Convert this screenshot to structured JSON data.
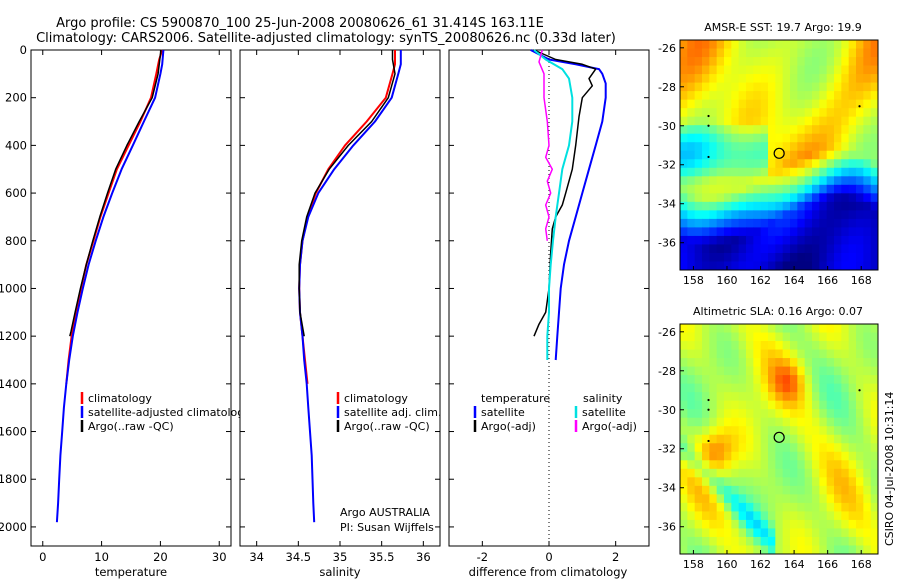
{
  "figure": {
    "title_line1": "Argo profile: CS 5900870_100 25-Jun-2008 20080626_61 31.414S 163.11E",
    "title_line2": "Climatology: CARS2006. Satellite-adjusted climatology: synTS_20080626.nc (0.33d later)",
    "credit": "CSIRO 04-Jul-2008 10:31:14"
  },
  "chart_data": [
    {
      "id": "temperature",
      "type": "line",
      "xlabel": "temperature",
      "xlim": [
        -2,
        32
      ],
      "xticks": [
        0,
        10,
        20,
        30
      ],
      "ylim": [
        0,
        2080
      ],
      "yticks": [
        0,
        200,
        400,
        600,
        800,
        1000,
        1200,
        1400,
        1600,
        1800,
        2000
      ],
      "y_reversed": true,
      "legend": [
        "climatology",
        "satellite-adjusted climatology",
        "Argo(..raw -QC)"
      ],
      "series": [
        {
          "name": "climatology",
          "color": "#ff0000",
          "width": 2,
          "points": [
            [
              20.3,
              0
            ],
            [
              19.8,
              40
            ],
            [
              19.3,
              100
            ],
            [
              18.4,
              200
            ],
            [
              16.6,
              300
            ],
            [
              14.6,
              400
            ],
            [
              12.6,
              500
            ],
            [
              11.2,
              600
            ],
            [
              9.8,
              700
            ],
            [
              8.6,
              800
            ],
            [
              7.4,
              900
            ],
            [
              6.5,
              1000
            ],
            [
              5.6,
              1100
            ],
            [
              4.9,
              1200
            ],
            [
              4.4,
              1300
            ],
            [
              4.0,
              1400
            ]
          ]
        },
        {
          "name": "satellite-adjusted climatology",
          "color": "#0000ff",
          "width": 2,
          "points": [
            [
              20.5,
              0
            ],
            [
              20.3,
              60
            ],
            [
              20.0,
              100
            ],
            [
              19.1,
              200
            ],
            [
              17.2,
              300
            ],
            [
              15.3,
              400
            ],
            [
              13.4,
              500
            ],
            [
              11.8,
              600
            ],
            [
              10.3,
              700
            ],
            [
              9.0,
              800
            ],
            [
              7.8,
              900
            ],
            [
              6.8,
              1000
            ],
            [
              5.9,
              1100
            ],
            [
              5.1,
              1200
            ],
            [
              4.5,
              1300
            ],
            [
              4.0,
              1400
            ],
            [
              3.6,
              1500
            ],
            [
              3.3,
              1600
            ],
            [
              3.0,
              1700
            ],
            [
              2.8,
              1800
            ],
            [
              2.6,
              1900
            ],
            [
              2.4,
              1980
            ]
          ]
        },
        {
          "name": "Argo(..raw -QC)",
          "color": "#000000",
          "width": 1.5,
          "points": [
            [
              20.1,
              0
            ],
            [
              19.9,
              40
            ],
            [
              19.6,
              100
            ],
            [
              18.6,
              200
            ],
            [
              16.4,
              300
            ],
            [
              14.3,
              400
            ],
            [
              12.4,
              500
            ],
            [
              11.0,
              600
            ],
            [
              9.7,
              700
            ],
            [
              8.5,
              800
            ],
            [
              7.4,
              900
            ],
            [
              6.4,
              1000
            ],
            [
              5.5,
              1100
            ],
            [
              4.8,
              1180
            ],
            [
              4.6,
              1200
            ]
          ]
        }
      ]
    },
    {
      "id": "salinity",
      "type": "line",
      "xlabel": "salinity",
      "xlim": [
        33.8,
        36.2
      ],
      "xticks": [
        34,
        34.5,
        35,
        35.5,
        36
      ],
      "ylim": [
        0,
        2080
      ],
      "yticks": [
        0,
        200,
        400,
        600,
        800,
        1000,
        1200,
        1400,
        1600,
        1800,
        2000
      ],
      "y_reversed": true,
      "legend": [
        "climatology",
        "satellite adj. clim.",
        "Argo(..raw -QC)"
      ],
      "annotation_line1": "Argo AUSTRALIA",
      "annotation_line2": "PI: Susan Wijffels",
      "series": [
        {
          "name": "climatology",
          "color": "#ff0000",
          "width": 2,
          "points": [
            [
              35.66,
              0
            ],
            [
              35.66,
              60
            ],
            [
              35.63,
              100
            ],
            [
              35.55,
              200
            ],
            [
              35.32,
              300
            ],
            [
              35.06,
              400
            ],
            [
              34.86,
              500
            ],
            [
              34.71,
              600
            ],
            [
              34.61,
              700
            ],
            [
              34.55,
              800
            ],
            [
              34.52,
              900
            ],
            [
              34.51,
              1000
            ],
            [
              34.52,
              1100
            ],
            [
              34.55,
              1200
            ],
            [
              34.58,
              1300
            ],
            [
              34.61,
              1400
            ]
          ]
        },
        {
          "name": "satellite adj. clim.",
          "color": "#0000ff",
          "width": 2,
          "points": [
            [
              35.73,
              0
            ],
            [
              35.73,
              60
            ],
            [
              35.7,
              100
            ],
            [
              35.62,
              200
            ],
            [
              35.42,
              300
            ],
            [
              35.16,
              400
            ],
            [
              34.93,
              500
            ],
            [
              34.74,
              600
            ],
            [
              34.62,
              700
            ],
            [
              34.55,
              800
            ],
            [
              34.52,
              900
            ],
            [
              34.51,
              1000
            ],
            [
              34.52,
              1100
            ],
            [
              34.55,
              1200
            ],
            [
              34.57,
              1300
            ],
            [
              34.6,
              1400
            ],
            [
              34.62,
              1500
            ],
            [
              34.64,
              1600
            ],
            [
              34.66,
              1700
            ],
            [
              34.67,
              1800
            ],
            [
              34.68,
              1900
            ],
            [
              34.69,
              1980
            ]
          ]
        },
        {
          "name": "Argo(..raw -QC)",
          "color": "#000000",
          "width": 1.5,
          "points": [
            [
              35.63,
              0
            ],
            [
              35.63,
              40
            ],
            [
              35.66,
              100
            ],
            [
              35.58,
              200
            ],
            [
              35.38,
              300
            ],
            [
              35.1,
              400
            ],
            [
              34.87,
              500
            ],
            [
              34.7,
              600
            ],
            [
              34.6,
              700
            ],
            [
              34.54,
              800
            ],
            [
              34.51,
              900
            ],
            [
              34.51,
              1000
            ],
            [
              34.52,
              1100
            ],
            [
              34.55,
              1160
            ],
            [
              34.57,
              1200
            ]
          ]
        }
      ]
    },
    {
      "id": "difference",
      "type": "line",
      "xlabel": "difference from climatology",
      "xlim": [
        -3.0,
        3.0
      ],
      "xticks": [
        -2,
        0,
        2
      ],
      "ylim": [
        0,
        2080
      ],
      "y_reversed": true,
      "zero_line": true,
      "legend_temperature_heading": "temperature",
      "legend_salinity_heading": "salinity",
      "legend_temperature": [
        "satellite",
        "Argo(-adj)"
      ],
      "legend_salinity": [
        "satellite",
        "Argo(-adj)"
      ],
      "series": [
        {
          "name": "temperature satellite",
          "color": "#0000ff",
          "width": 2,
          "points": [
            [
              -0.55,
              0
            ],
            [
              0.0,
              40
            ],
            [
              0.8,
              60
            ],
            [
              1.5,
              80
            ],
            [
              1.6,
              100
            ],
            [
              1.7,
              140
            ],
            [
              1.7,
              200
            ],
            [
              1.6,
              300
            ],
            [
              1.4,
              400
            ],
            [
              1.2,
              500
            ],
            [
              1.0,
              600
            ],
            [
              0.8,
              700
            ],
            [
              0.6,
              800
            ],
            [
              0.45,
              900
            ],
            [
              0.35,
              1000
            ],
            [
              0.3,
              1100
            ],
            [
              0.25,
              1200
            ],
            [
              0.2,
              1300
            ]
          ]
        },
        {
          "name": "temperature Argo(-adj)",
          "color": "#000000",
          "width": 1.5,
          "points": [
            [
              -0.45,
              0
            ],
            [
              0.2,
              40
            ],
            [
              1.0,
              60
            ],
            [
              1.4,
              80
            ],
            [
              1.2,
              120
            ],
            [
              1.3,
              150
            ],
            [
              1.0,
              200
            ],
            [
              0.9,
              280
            ],
            [
              0.8,
              400
            ],
            [
              0.7,
              500
            ],
            [
              0.5,
              600
            ],
            [
              0.4,
              650
            ],
            [
              0.2,
              700
            ],
            [
              0.1,
              750
            ],
            [
              0.05,
              850
            ],
            [
              0.0,
              1000
            ],
            [
              -0.1,
              1100
            ],
            [
              -0.3,
              1150
            ],
            [
              -0.45,
              1200
            ]
          ]
        },
        {
          "name": "salinity satellite",
          "color": "#00e0e0",
          "width": 2,
          "points": [
            [
              -0.45,
              0
            ],
            [
              -0.1,
              40
            ],
            [
              0.4,
              80
            ],
            [
              0.6,
              120
            ],
            [
              0.7,
              200
            ],
            [
              0.7,
              300
            ],
            [
              0.6,
              400
            ],
            [
              0.4,
              500
            ],
            [
              0.3,
              600
            ],
            [
              0.2,
              700
            ],
            [
              0.12,
              800
            ],
            [
              0.05,
              900
            ],
            [
              0.0,
              1000
            ],
            [
              0.0,
              1100
            ],
            [
              -0.05,
              1200
            ],
            [
              -0.05,
              1300
            ]
          ]
        },
        {
          "name": "salinity Argo(-adj)",
          "color": "#ff00ff",
          "width": 1.5,
          "points": [
            [
              -0.2,
              0
            ],
            [
              -0.3,
              50
            ],
            [
              -0.15,
              100
            ],
            [
              -0.15,
              200
            ],
            [
              -0.05,
              300
            ],
            [
              0.0,
              400
            ],
            [
              -0.1,
              450
            ],
            [
              0.1,
              500
            ],
            [
              -0.05,
              550
            ],
            [
              0.05,
              600
            ],
            [
              -0.1,
              650
            ],
            [
              0.0,
              700
            ],
            [
              -0.1,
              750
            ],
            [
              -0.05,
              800
            ]
          ]
        }
      ]
    },
    {
      "id": "sst_map",
      "type": "heatmap",
      "title": "AMSR-E SST: 19.7 Argo: 19.9",
      "xticks": [
        158,
        160,
        162,
        164,
        166,
        168
      ],
      "yticks": [
        -26,
        -28,
        -30,
        -32,
        -34,
        -36
      ],
      "xlim": [
        157.2,
        169.0
      ],
      "ylim": [
        -37.4,
        -25.6
      ],
      "marker": {
        "lon": 163.11,
        "lat": -31.414
      }
    },
    {
      "id": "sla_map",
      "type": "heatmap",
      "title": "Altimetric SLA: 0.16 Argo: 0.07",
      "xticks": [
        158,
        160,
        162,
        164,
        166,
        168
      ],
      "yticks": [
        -26,
        -28,
        -30,
        -32,
        -34,
        -36
      ],
      "xlim": [
        157.2,
        169.0
      ],
      "ylim": [
        -37.4,
        -25.6
      ],
      "marker": {
        "lon": 163.11,
        "lat": -31.414
      }
    }
  ]
}
